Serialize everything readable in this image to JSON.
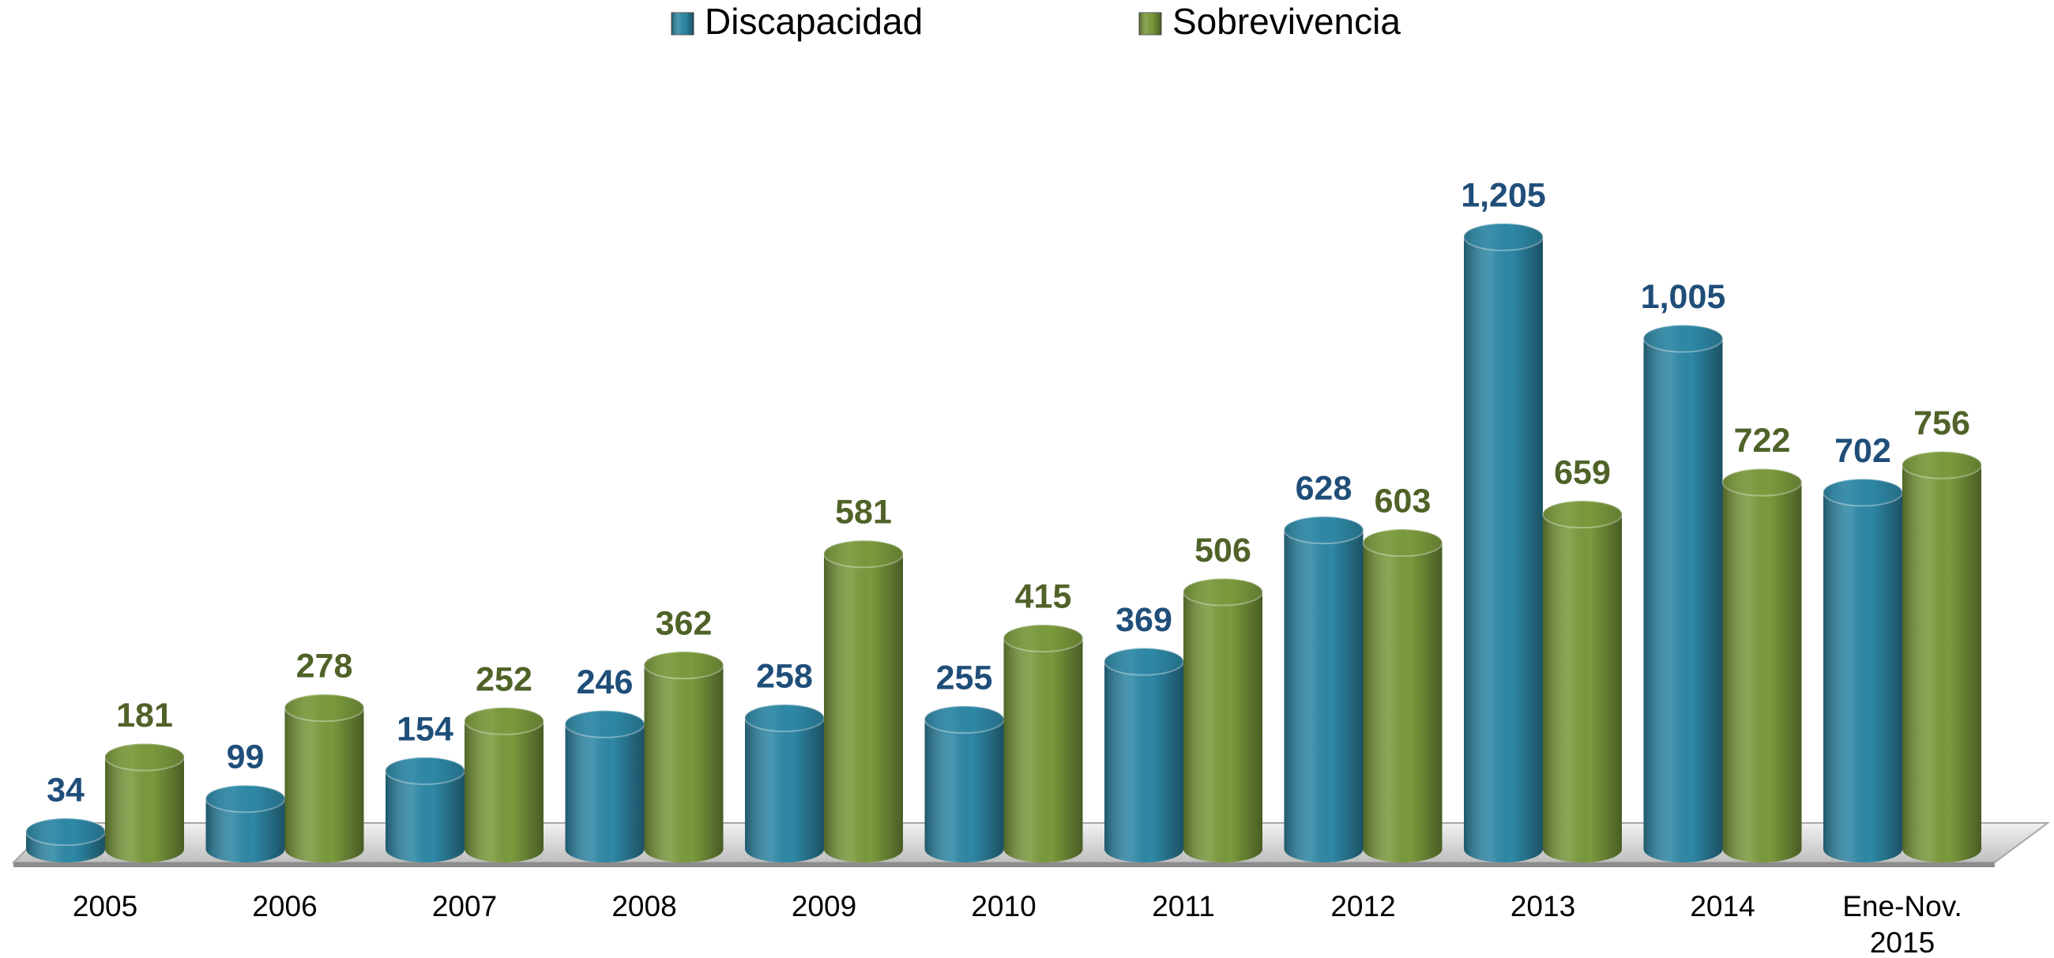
{
  "chart_data": {
    "type": "bar",
    "categories": [
      "2005",
      "2006",
      "2007",
      "2008",
      "2009",
      "2010",
      "2011",
      "2012",
      "2013",
      "2014",
      "Ene-Nov. 2015"
    ],
    "series": [
      {
        "name": "Discapacidad",
        "color": "#2e88a6",
        "label_color": "#1f4e79",
        "values": [
          34,
          99,
          154,
          246,
          258,
          255,
          369,
          628,
          1205,
          1005,
          702
        ],
        "value_labels": [
          "34",
          "99",
          "154",
          "246",
          "258",
          "255",
          "369",
          "628",
          "1,205",
          "1,005",
          "702"
        ]
      },
      {
        "name": "Sobrevivencia",
        "color": "#7a9a3c",
        "label_color": "#4f6228",
        "values": [
          181,
          278,
          252,
          362,
          581,
          415,
          506,
          603,
          659,
          722,
          756
        ],
        "value_labels": [
          "181",
          "278",
          "252",
          "362",
          "581",
          "415",
          "506",
          "603",
          "659",
          "722",
          "756"
        ]
      }
    ],
    "legend": "top"
  }
}
